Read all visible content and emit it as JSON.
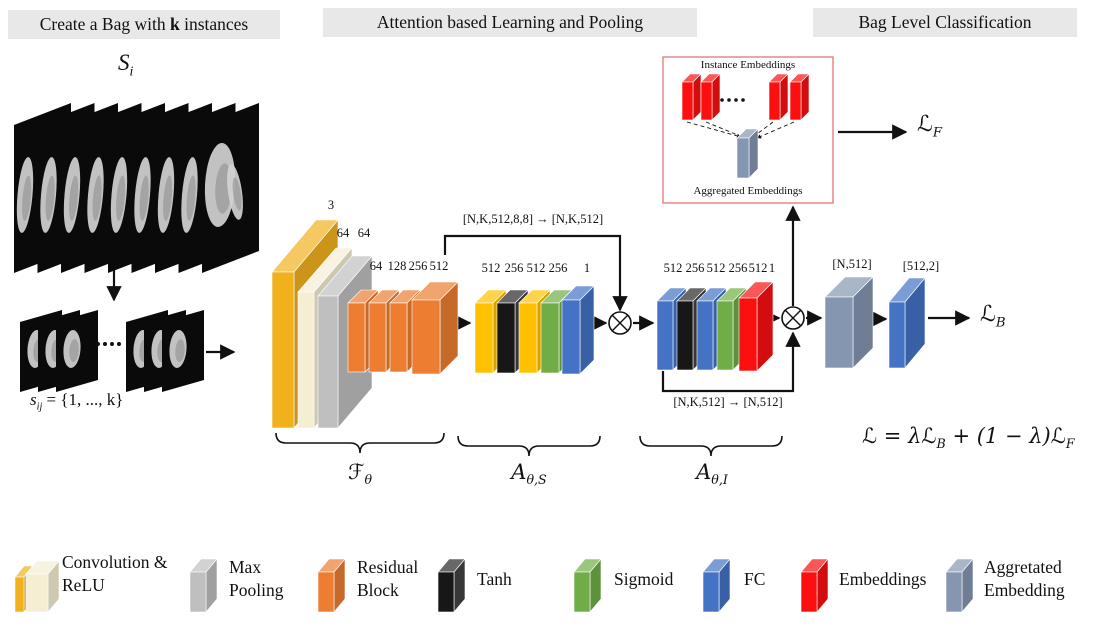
{
  "headers": {
    "create_bag_pre": "Create a Bag with ",
    "create_bag_k": "k",
    "create_bag_post": " instances",
    "attention": "Attention based Learning and Pooling",
    "bag_level": "Bag Level Classification"
  },
  "stack": {
    "title_base": "S",
    "title_sub": "i",
    "caption_base": "s",
    "caption_sub": "ij",
    "caption_rest": " = {1, ..., k}"
  },
  "backbone": {
    "labels": [
      "3",
      "64",
      "64",
      "64",
      "128",
      "256",
      "512"
    ]
  },
  "attn_s": {
    "labels": [
      "512",
      "256",
      "512",
      "256",
      "1"
    ],
    "skip_label": "[N,K,512,8,8]  →  [N,K,512]"
  },
  "attn_i": {
    "labels": [
      "512",
      "256",
      "512",
      "256",
      "512",
      "1"
    ],
    "skip_label": "[N,K,512]  →  [N,512]"
  },
  "fc": {
    "in_label": "[N,512]",
    "out_label": "[512,2]"
  },
  "embed_box": {
    "title": "Instance Embeddings",
    "caption": "Aggregated Embeddings"
  },
  "losses": {
    "lf_base": "ℒ",
    "lf_sub": "F",
    "lb_base": "ℒ",
    "lb_sub": "B"
  },
  "equation": {
    "p1": "ℒ = λℒ",
    "s1": "B",
    "p2": " + (1 − λ)ℒ",
    "s2": "F"
  },
  "braces": {
    "f_base": "ℱ",
    "f_sub": "θ",
    "as_base": "A",
    "as_sub": "θ,S",
    "ai_base": "A",
    "ai_sub": "θ,I"
  },
  "legend": {
    "items": [
      {
        "label": "Convolution & ReLU"
      },
      {
        "label": "Max Pooling"
      },
      {
        "label": "Residual Block"
      },
      {
        "label": "Tanh"
      },
      {
        "label": "Sigmoid"
      },
      {
        "label": "FC"
      },
      {
        "label": "Embeddings"
      },
      {
        "label": "Aggretated Embedding"
      }
    ]
  },
  "colors": {
    "header_bg": "#e8e8e8",
    "gold": "#f0b11d",
    "cream": "#f5eed3",
    "gray": "#bfbfbf",
    "orange": "#ed7d31",
    "yellow": "#ffc000",
    "black_block": "#171717",
    "green": "#70ad47",
    "blue": "#4472c4",
    "red": "#fb0f0f",
    "blue_gray": "#8496b0",
    "box_stroke": "#e87272",
    "arrow": "#111111"
  }
}
